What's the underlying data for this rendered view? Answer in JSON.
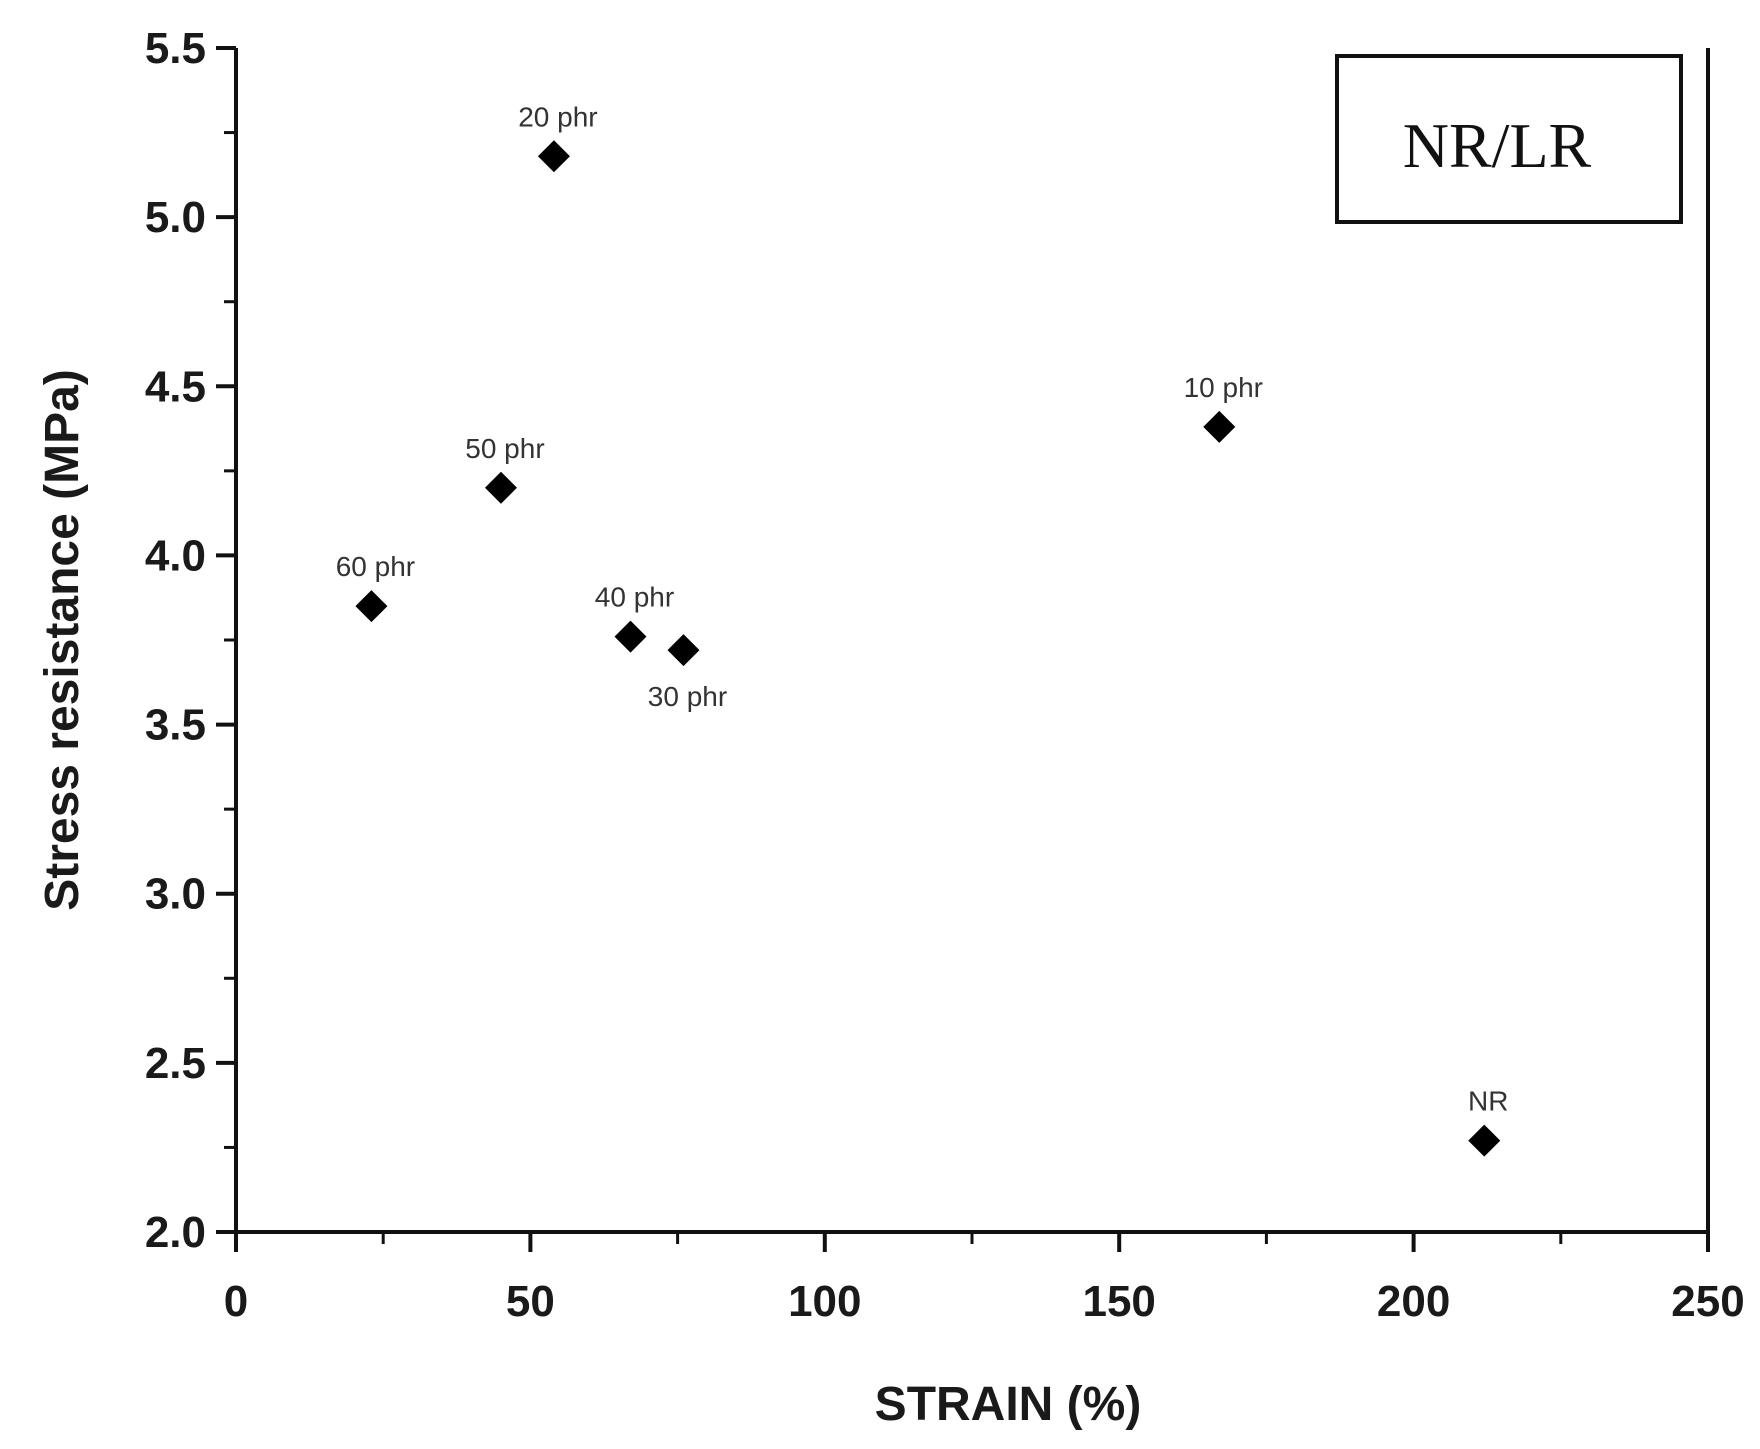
{
  "chart_data": {
    "type": "scatter",
    "title": "",
    "xlabel": "STRAIN (%)",
    "ylabel": "Stress resistance (MPa)",
    "xlim": [
      0,
      250
    ],
    "ylim": [
      2.0,
      5.5
    ],
    "x_ticks": [
      0,
      50,
      100,
      150,
      200,
      250
    ],
    "x_tick_labels": [
      "0",
      "50",
      "100",
      "150",
      "200",
      "250"
    ],
    "y_ticks": [
      2.0,
      2.5,
      3.0,
      3.5,
      4.0,
      4.5,
      5.0,
      5.5
    ],
    "y_tick_labels": [
      "2.0",
      "2.5",
      "3.0",
      "3.5",
      "4.0",
      "4.5",
      "5.0",
      "5.5"
    ],
    "grid": false,
    "legend": {
      "text": "NR/LR",
      "placement": "top-right"
    },
    "marker": "diamond",
    "marker_color": "#000000",
    "points": [
      {
        "label": "20 phr",
        "x": 54,
        "y": 5.18,
        "label_position": "above"
      },
      {
        "label": "10 phr",
        "x": 167,
        "y": 4.38,
        "label_position": "above"
      },
      {
        "label": "50 phr",
        "x": 45,
        "y": 4.2,
        "label_position": "above"
      },
      {
        "label": "60 phr",
        "x": 23,
        "y": 3.85,
        "label_position": "above"
      },
      {
        "label": "40 phr",
        "x": 67,
        "y": 3.76,
        "label_position": "above"
      },
      {
        "label": "30 phr",
        "x": 76,
        "y": 3.72,
        "label_position": "below"
      },
      {
        "label": "NR",
        "x": 212,
        "y": 2.27,
        "label_position": "above"
      }
    ]
  }
}
